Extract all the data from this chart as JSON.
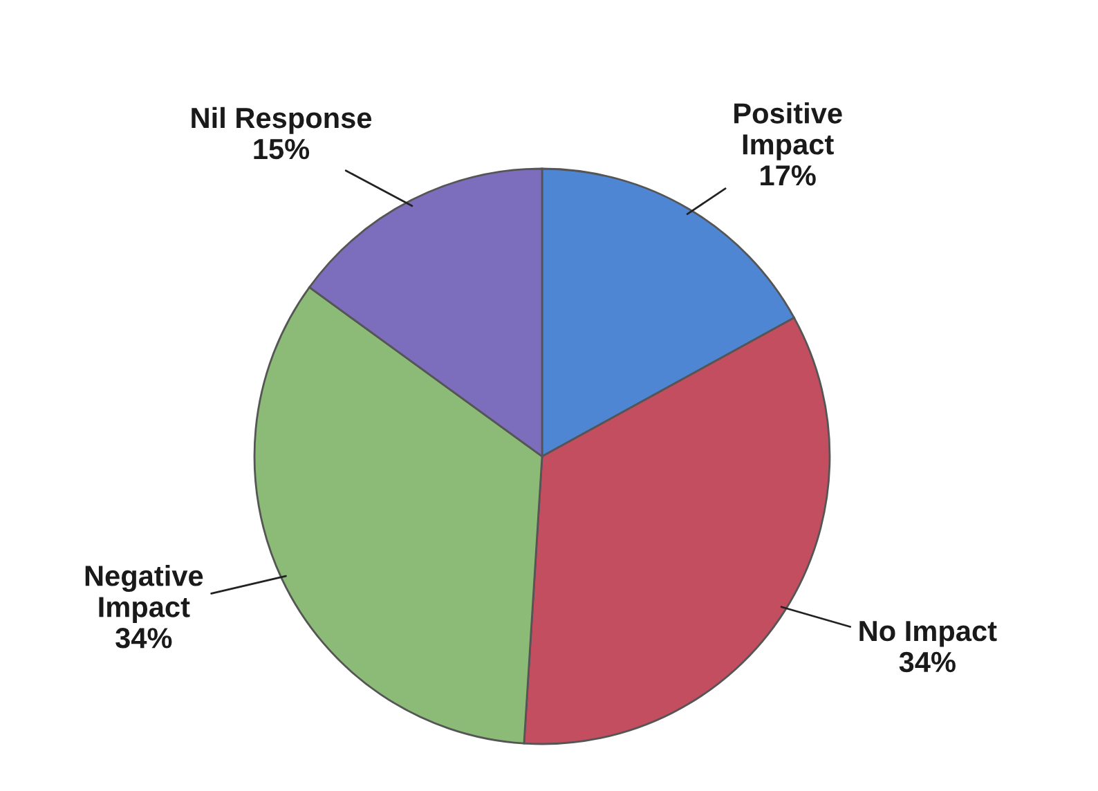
{
  "chart_data": {
    "type": "pie",
    "categories": [
      "Positive Impact",
      "No Impact",
      "Negative Impact",
      "Nil Response"
    ],
    "values": [
      17,
      34,
      34,
      15
    ],
    "value_labels": [
      "17%",
      "34%",
      "34%",
      "15%"
    ],
    "colors": [
      "#4f86d4",
      "#c24e60",
      "#8cbb78",
      "#7d6dbd"
    ]
  }
}
